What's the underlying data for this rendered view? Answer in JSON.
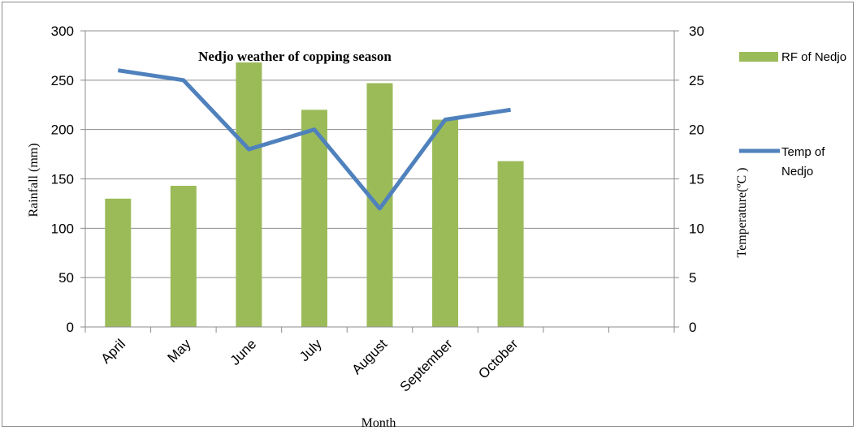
{
  "chart_data": {
    "type": "bar",
    "title": "Nedjo weather of copping season",
    "xlabel": "Month",
    "ylabel": "Rainfall (mm)",
    "y2label": "Temperature(ºC )",
    "categories": [
      "April",
      "May",
      "June",
      "July",
      "August",
      "September",
      "October",
      "",
      ""
    ],
    "ylim": [
      0,
      300
    ],
    "y_ticks": [
      "0",
      "50",
      "100",
      "150",
      "200",
      "250",
      "300"
    ],
    "y2lim": [
      0,
      30
    ],
    "y2_ticks": [
      "0",
      "5",
      "10",
      "15",
      "20",
      "25",
      "30"
    ],
    "grid": true,
    "legend_position": "right",
    "series": [
      {
        "name": "RF of Nedjo",
        "type": "bar",
        "axis": "left",
        "color": "#9bbb59",
        "values": [
          130,
          143,
          268,
          220,
          247,
          210,
          168,
          null,
          null
        ]
      },
      {
        "name": "Temp of Nedjo",
        "type": "line",
        "axis": "right",
        "color": "#4f81bd",
        "values": [
          26,
          25,
          18,
          20,
          12,
          21,
          22,
          null,
          null
        ]
      }
    ]
  }
}
